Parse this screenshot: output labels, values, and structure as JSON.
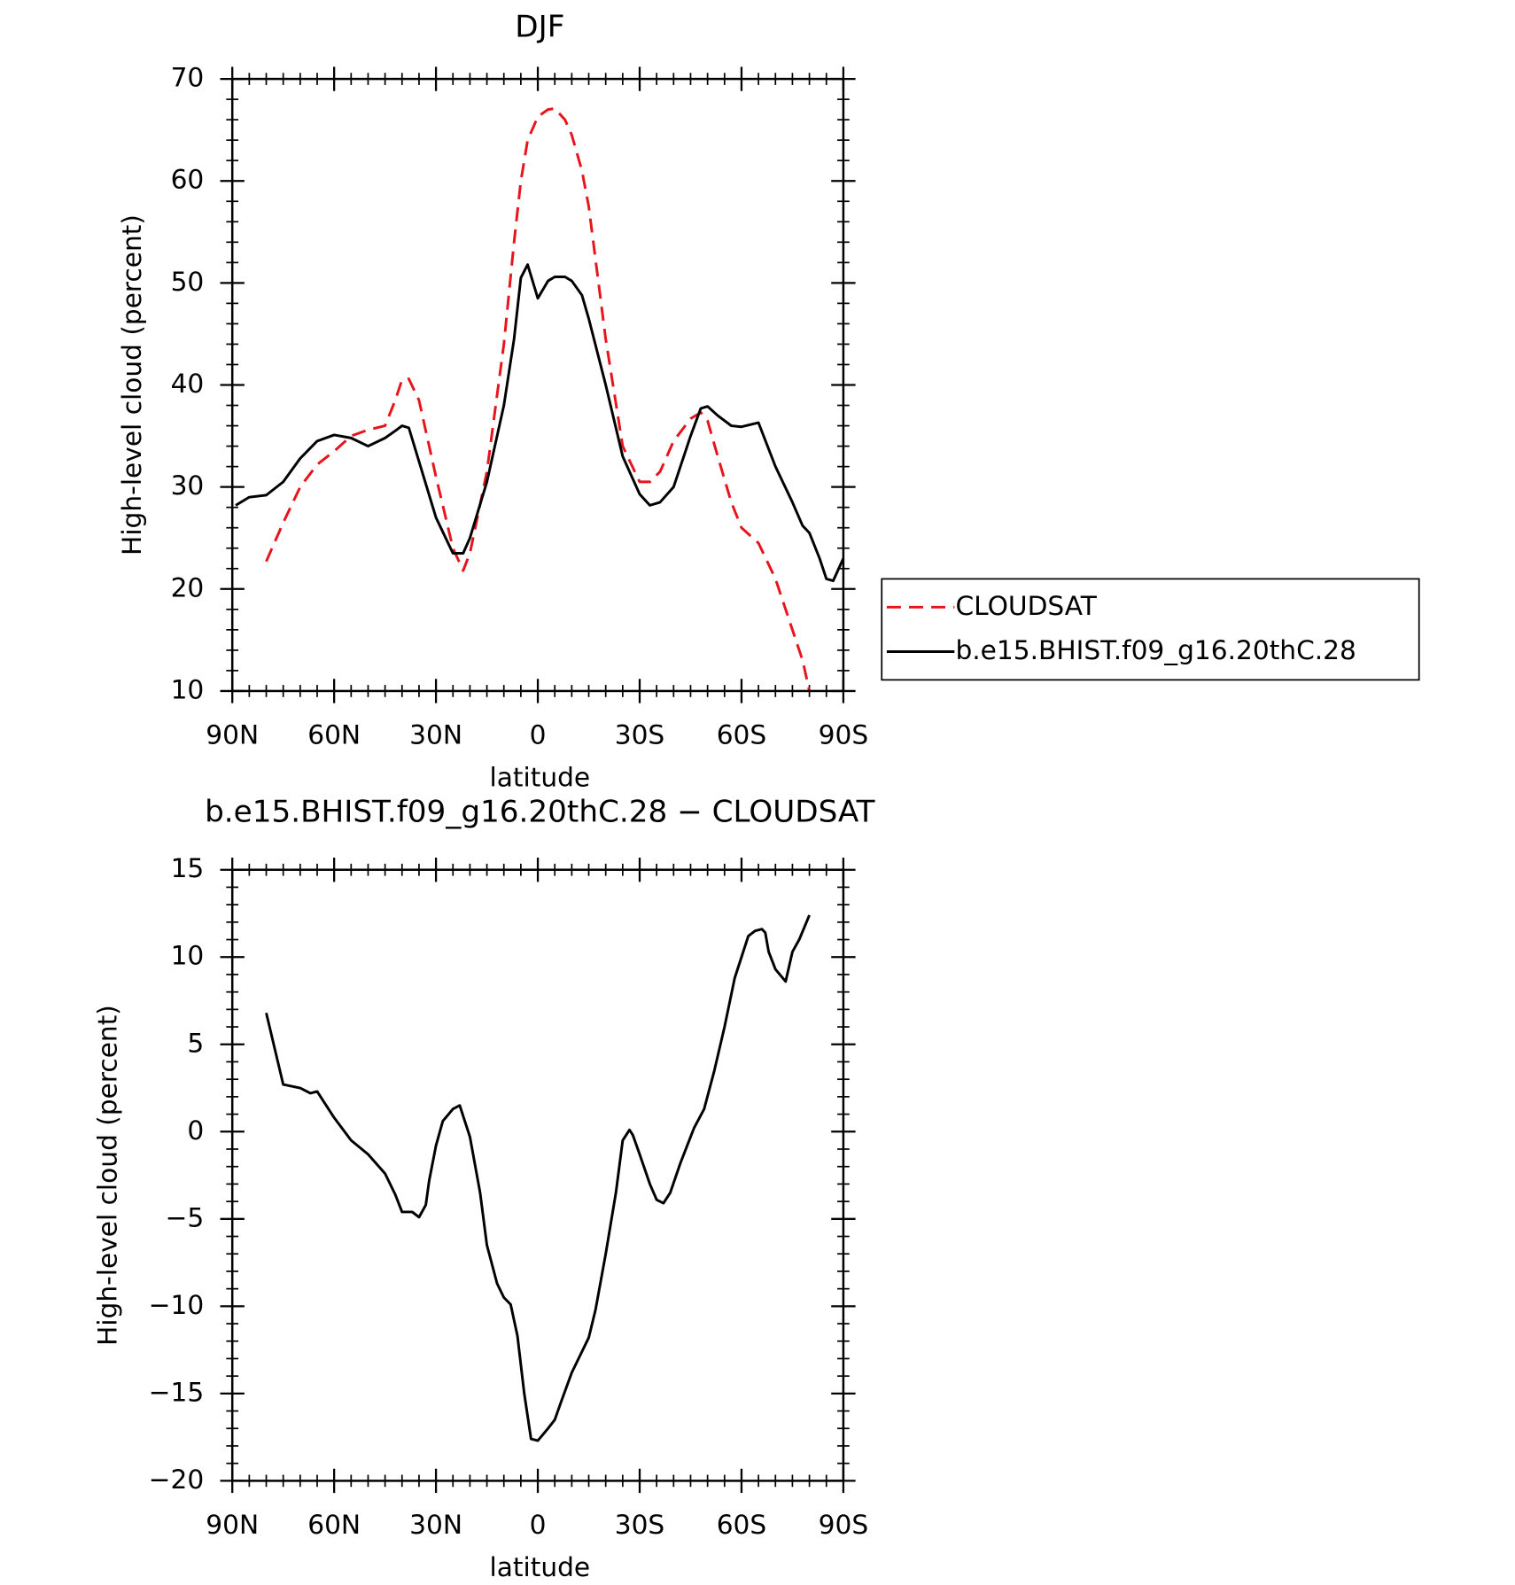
{
  "chart_data": [
    {
      "type": "line",
      "title": "DJF",
      "xlabel": "latitude",
      "ylabel": "High-level cloud (percent)",
      "x": [
        89,
        85,
        80,
        75,
        70,
        65,
        60,
        55,
        50,
        45,
        42,
        40,
        38,
        35,
        30,
        25,
        22,
        20,
        15,
        10,
        7,
        5,
        3,
        0,
        -3,
        -5,
        -8,
        -10,
        -13,
        -15,
        -20,
        -25,
        -30,
        -33,
        -36,
        -40,
        -45,
        -48,
        -50,
        -53,
        -57,
        -60,
        -65,
        -70,
        -75,
        -78,
        -80,
        -83,
        -85,
        -87,
        -90
      ],
      "series": [
        {
          "name": "CLOUDSAT",
          "color": "#e8141b",
          "dash": "dashed",
          "values": [
            null,
            null,
            22.7,
            26.5,
            30.0,
            32.2,
            33.5,
            35.0,
            35.6,
            36.0,
            38.5,
            40.5,
            40.6,
            38.5,
            31.0,
            24.0,
            21.8,
            23.5,
            31.5,
            44.0,
            54.0,
            60.0,
            64.0,
            66.3,
            67.0,
            67.1,
            66.0,
            64.5,
            61.0,
            57.5,
            44.5,
            34.0,
            30.5,
            30.5,
            31.5,
            34.5,
            36.7,
            37.3,
            36.5,
            33.0,
            28.5,
            26.0,
            24.5,
            21.0,
            16.0,
            13.0,
            10.0,
            null,
            null,
            null,
            null
          ]
        },
        {
          "name": "b.e15.BHIST.f09_g16.20thC.28",
          "color": "#000000",
          "dash": "solid",
          "values": [
            28.2,
            29.0,
            29.2,
            30.5,
            32.8,
            34.5,
            35.1,
            34.8,
            34.0,
            34.8,
            35.5,
            36.0,
            35.8,
            32.5,
            27.0,
            23.5,
            23.5,
            25.0,
            30.5,
            38.0,
            44.5,
            50.5,
            51.8,
            48.5,
            50.2,
            50.6,
            50.6,
            50.2,
            48.8,
            46.5,
            40.0,
            33.0,
            29.3,
            28.2,
            28.5,
            30.0,
            35.0,
            37.7,
            37.9,
            37.0,
            36.0,
            35.9,
            36.3,
            32.0,
            28.5,
            26.2,
            25.5,
            23.0,
            21.0,
            20.8,
            23.0
          ]
        }
      ],
      "xlim": [
        90,
        -90
      ],
      "ylim": [
        10,
        70
      ],
      "xticks": [
        {
          "value": 90,
          "label": "90N"
        },
        {
          "value": 60,
          "label": "60N"
        },
        {
          "value": 30,
          "label": "30N"
        },
        0,
        {
          "value": -30,
          "label": "30S"
        },
        {
          "value": -60,
          "label": "60S"
        },
        {
          "value": -90,
          "label": "90S"
        }
      ],
      "yticks": [
        10,
        20,
        30,
        40,
        50,
        60,
        70
      ],
      "legend": "right"
    },
    {
      "type": "line",
      "title": "b.e15.BHIST.f09_g16.20thC.28 − CLOUDSAT",
      "xlabel": "latitude",
      "ylabel": "High-level cloud (percent)",
      "x": [
        80,
        75,
        70,
        67,
        65,
        60,
        55,
        50,
        45,
        42,
        40,
        37,
        35,
        33,
        32,
        30,
        28,
        25,
        23,
        20,
        17,
        15,
        12,
        10,
        8,
        6,
        4,
        2,
        0,
        -3,
        -5,
        -7,
        -10,
        -15,
        -17,
        -20,
        -23,
        -25,
        -27,
        -28,
        -30,
        -33,
        -35,
        -37,
        -39,
        -42,
        -44,
        -46,
        -49,
        -52,
        -55,
        -58,
        -60,
        -62,
        -64,
        -66,
        -67,
        -68,
        -70,
        -73,
        -75,
        -77,
        -80
      ],
      "series": [
        {
          "color": "#000000",
          "dash": "solid",
          "values": [
            6.8,
            2.7,
            2.5,
            2.2,
            2.3,
            0.8,
            -0.5,
            -1.3,
            -2.4,
            -3.6,
            -4.6,
            -4.6,
            -4.9,
            -4.2,
            -2.8,
            -0.8,
            0.6,
            1.3,
            1.5,
            -0.3,
            -3.5,
            -6.5,
            -8.7,
            -9.5,
            -9.9,
            -11.7,
            -15.0,
            -17.6,
            -17.7,
            -17.0,
            -16.5,
            -15.4,
            -13.8,
            -11.8,
            -10.2,
            -7.0,
            -3.5,
            -0.5,
            0.1,
            -0.2,
            -1.3,
            -3.0,
            -3.9,
            -4.1,
            -3.5,
            -1.8,
            -0.8,
            0.2,
            1.3,
            3.5,
            6.0,
            8.8,
            10.0,
            11.2,
            11.5,
            11.6,
            11.4,
            10.3,
            9.3,
            8.6,
            10.3,
            11.0,
            12.4
          ]
        }
      ],
      "xlim": [
        90,
        -90
      ],
      "ylim": [
        -20,
        15
      ],
      "xticks": [
        {
          "value": 90,
          "label": "90N"
        },
        {
          "value": 60,
          "label": "60N"
        },
        {
          "value": 30,
          "label": "30N"
        },
        0,
        {
          "value": -30,
          "label": "30S"
        },
        {
          "value": -60,
          "label": "60S"
        },
        {
          "value": -90,
          "label": "90S"
        }
      ],
      "yticks": [
        {
          "value": -20,
          "label": "−20"
        },
        {
          "value": -15,
          "label": "−15"
        },
        {
          "value": -10,
          "label": "−10"
        },
        {
          "value": -5,
          "label": "−5"
        },
        0,
        5,
        10,
        15
      ]
    }
  ]
}
